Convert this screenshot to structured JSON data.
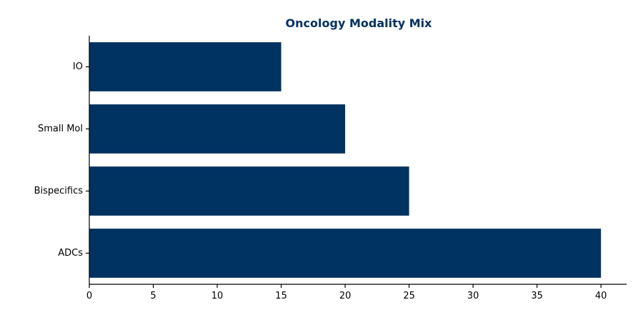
{
  "chart_data": {
    "type": "bar",
    "orientation": "horizontal",
    "title": "Oncology Modality Mix",
    "xlabel": "",
    "ylabel": "",
    "categories": [
      "ADCs",
      "Bispecifics",
      "Small Mol",
      "IO"
    ],
    "values": [
      40,
      25,
      20,
      15
    ],
    "xlim": [
      0,
      42
    ],
    "xticks": [
      0,
      5,
      10,
      15,
      20,
      25,
      30,
      35,
      40
    ],
    "grid": false,
    "legend": "none"
  },
  "colors": {
    "bar": "#003262",
    "title": "#003262",
    "axis": "#000000"
  }
}
